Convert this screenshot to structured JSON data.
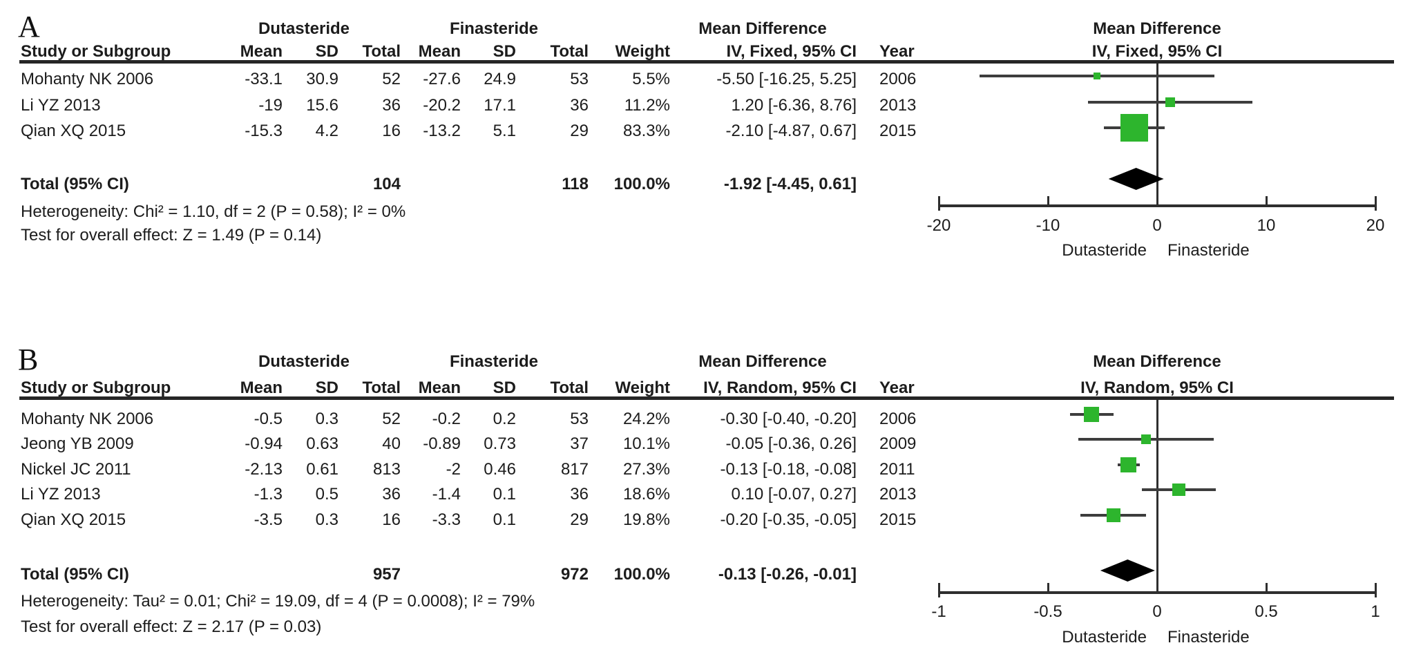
{
  "colors": {
    "marker_green": "#2db52d",
    "diamond_black": "#000000",
    "line_dark": "#3d3d3d",
    "rule_black": "#262626",
    "text": "#1c1c1c",
    "background": "#ffffff"
  },
  "chart_data": [
    {
      "type": "forest",
      "panel_label": "A",
      "group1_header": "Dutasteride",
      "group2_header": "Finasteride",
      "effect_header": "Mean Difference",
      "model_header": "IV, Fixed, 95% CI",
      "plot_effect_header": "Mean Difference",
      "plot_model_header": "IV, Fixed, 95% CI",
      "columns": {
        "study": "Study or Subgroup",
        "mean1": "Mean",
        "sd1": "SD",
        "total1": "Total",
        "mean2": "Mean",
        "sd2": "SD",
        "total2": "Total",
        "weight": "Weight",
        "year": "Year"
      },
      "studies": [
        {
          "study": "Mohanty NK 2006",
          "mean1": "-33.1",
          "sd1": "30.9",
          "total1": "52",
          "mean2": "-27.6",
          "sd2": "24.9",
          "total2": "53",
          "weight": "5.5%",
          "ci_text": "-5.50 [-16.25, 5.25]",
          "year": "2006",
          "md": -5.5,
          "lo": -16.25,
          "hi": 5.25,
          "weight_pct": 5.5
        },
        {
          "study": "Li YZ 2013",
          "mean1": "-19",
          "sd1": "15.6",
          "total1": "36",
          "mean2": "-20.2",
          "sd2": "17.1",
          "total2": "36",
          "weight": "11.2%",
          "ci_text": "1.20 [-6.36, 8.76]",
          "year": "2013",
          "md": 1.2,
          "lo": -6.36,
          "hi": 8.76,
          "weight_pct": 11.2
        },
        {
          "study": "Qian XQ 2015",
          "mean1": "-15.3",
          "sd1": "4.2",
          "total1": "16",
          "mean2": "-13.2",
          "sd2": "5.1",
          "total2": "29",
          "weight": "83.3%",
          "ci_text": "-2.10 [-4.87, 0.67]",
          "year": "2015",
          "md": -2.1,
          "lo": -4.87,
          "hi": 0.67,
          "weight_pct": 83.3
        }
      ],
      "total": {
        "label": "Total (95% CI)",
        "total1": "104",
        "total2": "118",
        "weight": "100.0%",
        "ci_text": "-1.92 [-4.45, 0.61]",
        "md": -1.92,
        "lo": -4.45,
        "hi": 0.61
      },
      "heterogeneity": "Heterogeneity: Chi² = 1.10, df = 2 (P = 0.58); I² = 0%",
      "overall_effect": "Test for overall effect: Z = 1.49 (P = 0.14)",
      "axis": {
        "min": -20,
        "max": 20,
        "ticks": [
          -20,
          -10,
          0,
          10,
          20
        ],
        "tick_labels": [
          "-20",
          "-10",
          "0",
          "10",
          "20"
        ],
        "left_label": "Dutasteride",
        "right_label": "Finasteride"
      }
    },
    {
      "type": "forest",
      "panel_label": "B",
      "group1_header": "Dutasteride",
      "group2_header": "Finasteride",
      "effect_header": "Mean Difference",
      "model_header": "IV, Random, 95% CI",
      "plot_effect_header": "Mean Difference",
      "plot_model_header": "IV, Random, 95% CI",
      "columns": {
        "study": "Study or Subgroup",
        "mean1": "Mean",
        "sd1": "SD",
        "total1": "Total",
        "mean2": "Mean",
        "sd2": "SD",
        "total2": "Total",
        "weight": "Weight",
        "year": "Year"
      },
      "studies": [
        {
          "study": "Mohanty NK 2006",
          "mean1": "-0.5",
          "sd1": "0.3",
          "total1": "52",
          "mean2": "-0.2",
          "sd2": "0.2",
          "total2": "53",
          "weight": "24.2%",
          "ci_text": "-0.30 [-0.40, -0.20]",
          "year": "2006",
          "md": -0.3,
          "lo": -0.4,
          "hi": -0.2,
          "weight_pct": 24.2
        },
        {
          "study": "Jeong YB 2009",
          "mean1": "-0.94",
          "sd1": "0.63",
          "total1": "40",
          "mean2": "-0.89",
          "sd2": "0.73",
          "total2": "37",
          "weight": "10.1%",
          "ci_text": "-0.05 [-0.36, 0.26]",
          "year": "2009",
          "md": -0.05,
          "lo": -0.36,
          "hi": 0.26,
          "weight_pct": 10.1
        },
        {
          "study": "Nickel JC 2011",
          "mean1": "-2.13",
          "sd1": "0.61",
          "total1": "813",
          "mean2": "-2",
          "sd2": "0.46",
          "total2": "817",
          "weight": "27.3%",
          "ci_text": "-0.13 [-0.18, -0.08]",
          "year": "2011",
          "md": -0.13,
          "lo": -0.18,
          "hi": -0.08,
          "weight_pct": 27.3
        },
        {
          "study": "Li YZ 2013",
          "mean1": "-1.3",
          "sd1": "0.5",
          "total1": "36",
          "mean2": "-1.4",
          "sd2": "0.1",
          "total2": "36",
          "weight": "18.6%",
          "ci_text": "0.10 [-0.07, 0.27]",
          "year": "2013",
          "md": 0.1,
          "lo": -0.07,
          "hi": 0.27,
          "weight_pct": 18.6
        },
        {
          "study": "Qian XQ 2015",
          "mean1": "-3.5",
          "sd1": "0.3",
          "total1": "16",
          "mean2": "-3.3",
          "sd2": "0.1",
          "total2": "29",
          "weight": "19.8%",
          "ci_text": "-0.20 [-0.35, -0.05]",
          "year": "2015",
          "md": -0.2,
          "lo": -0.35,
          "hi": -0.05,
          "weight_pct": 19.8
        }
      ],
      "total": {
        "label": "Total (95% CI)",
        "total1": "957",
        "total2": "972",
        "weight": "100.0%",
        "ci_text": "-0.13 [-0.26, -0.01]",
        "md": -0.13,
        "lo": -0.26,
        "hi": -0.01
      },
      "heterogeneity": "Heterogeneity: Tau² = 0.01; Chi² = 19.09, df = 4 (P = 0.0008); I² = 79%",
      "overall_effect": "Test for overall effect: Z = 2.17 (P = 0.03)",
      "axis": {
        "min": -1,
        "max": 1,
        "ticks": [
          -1,
          -0.5,
          0,
          0.5,
          1
        ],
        "tick_labels": [
          "-1",
          "-0.5",
          "0",
          "0.5",
          "1"
        ],
        "left_label": "Dutasteride",
        "right_label": "Finasteride"
      }
    }
  ]
}
